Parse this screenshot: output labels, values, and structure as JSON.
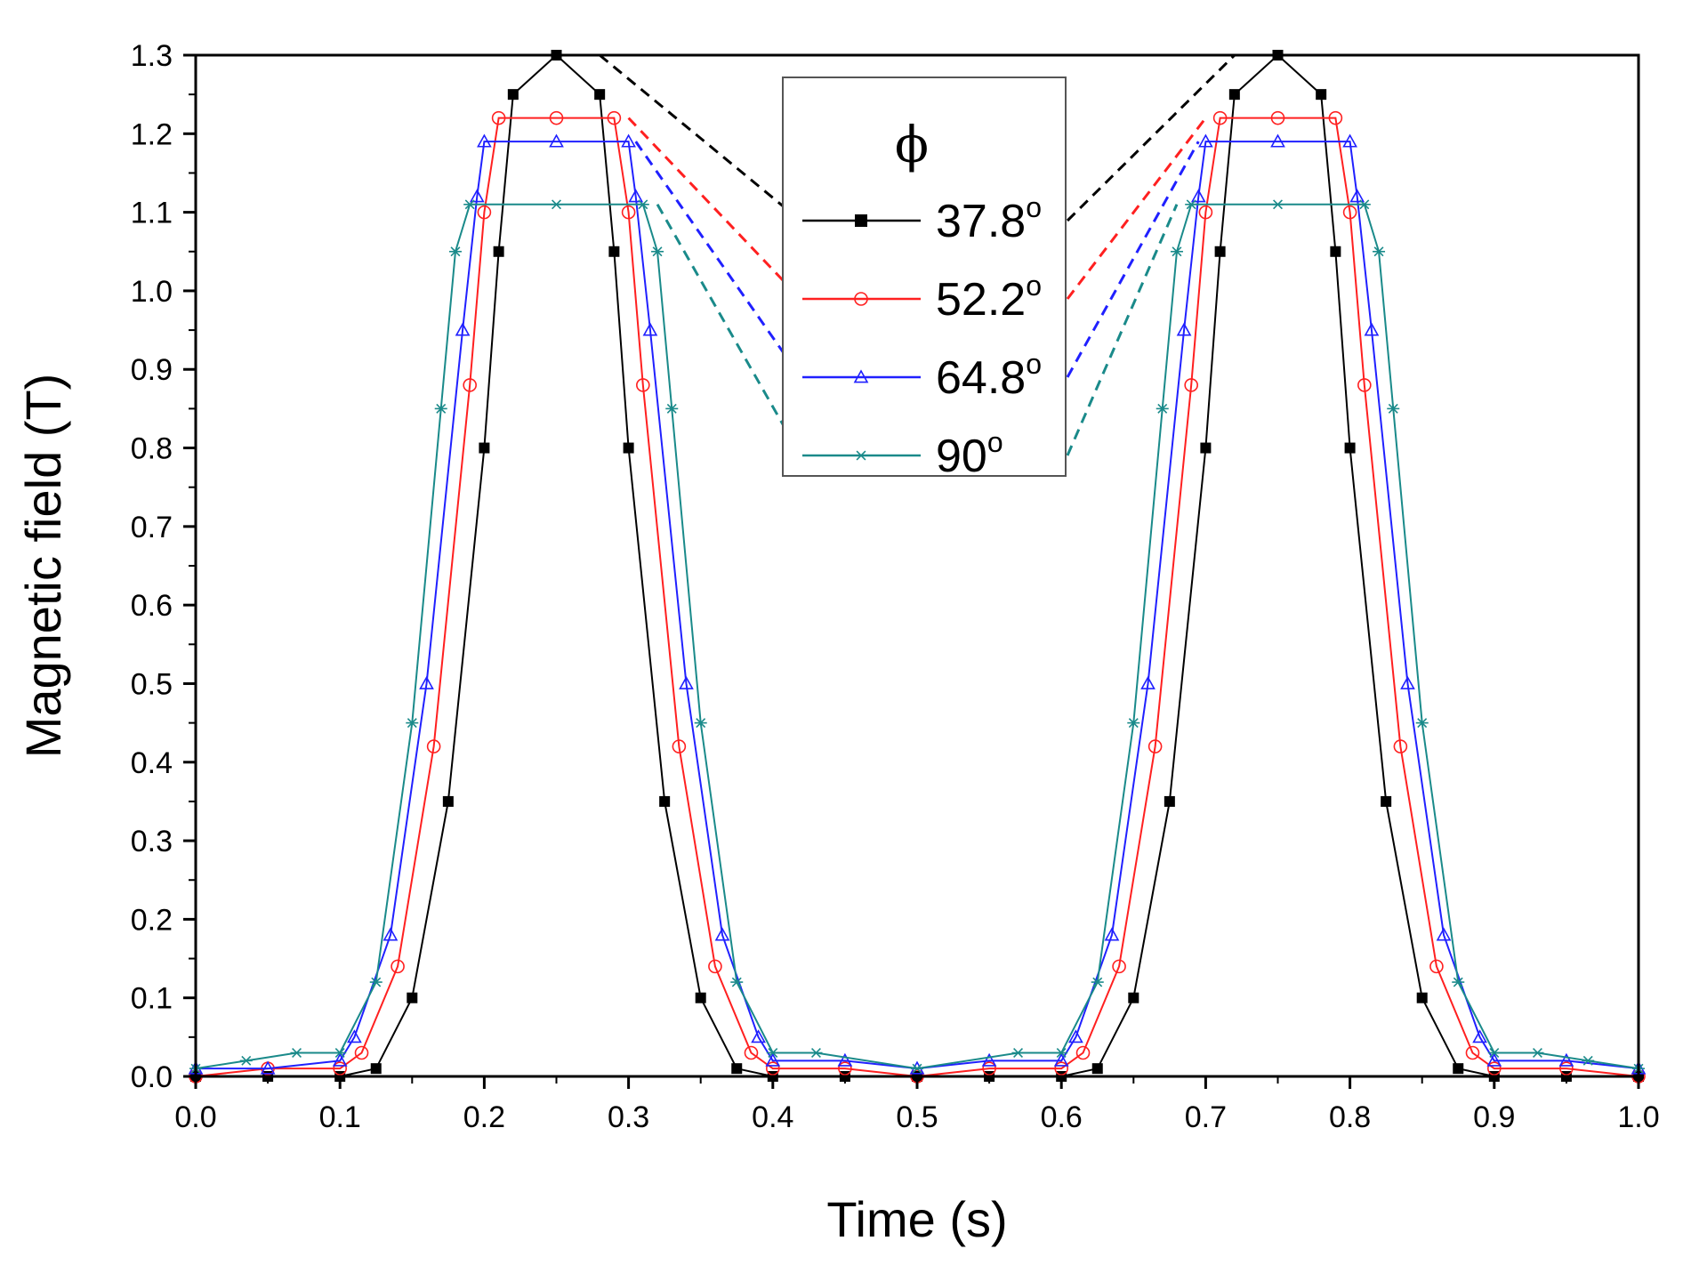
{
  "chart_data": {
    "type": "line",
    "title": "",
    "xlabel": "Time (s)",
    "ylabel": "Magnetic field (T)",
    "xlim": [
      0.0,
      1.0
    ],
    "ylim": [
      0.0,
      1.3
    ],
    "x_ticks": [
      "0.0",
      "0.1",
      "0.2",
      "0.3",
      "0.4",
      "0.5",
      "0.6",
      "0.7",
      "0.8",
      "0.9",
      "1.0"
    ],
    "y_ticks": [
      "0.0",
      "0.1",
      "0.2",
      "0.3",
      "0.4",
      "0.5",
      "0.6",
      "0.7",
      "0.8",
      "0.9",
      "1.0",
      "1.1",
      "1.2",
      "1.3"
    ],
    "legend": {
      "title": "ϕ",
      "placement": "top-center"
    },
    "series": [
      {
        "name": "37.8°",
        "angle": "37.8",
        "unit_sup": "o",
        "color": "#000000",
        "marker": "square",
        "x": [
          0.0,
          0.05,
          0.1,
          0.125,
          0.15,
          0.175,
          0.2,
          0.21,
          0.22,
          0.25,
          0.28,
          0.29,
          0.3,
          0.325,
          0.35,
          0.375,
          0.4,
          0.45,
          0.5,
          0.55,
          0.6,
          0.625,
          0.65,
          0.675,
          0.7,
          0.71,
          0.72,
          0.75,
          0.78,
          0.79,
          0.8,
          0.825,
          0.85,
          0.875,
          0.9,
          0.95,
          1.0
        ],
        "y": [
          0.0,
          0.0,
          0.0,
          0.01,
          0.1,
          0.35,
          0.8,
          1.05,
          1.25,
          1.3,
          1.25,
          1.05,
          0.8,
          0.35,
          0.1,
          0.01,
          0.0,
          0.0,
          0.0,
          0.0,
          0.0,
          0.01,
          0.1,
          0.35,
          0.8,
          1.05,
          1.25,
          1.3,
          1.25,
          1.05,
          0.8,
          0.35,
          0.1,
          0.01,
          0.0,
          0.0,
          0.0
        ]
      },
      {
        "name": "52.2°",
        "angle": "52.2",
        "unit_sup": "o",
        "color": "#ff2020",
        "marker": "circle",
        "x": [
          0.0,
          0.05,
          0.1,
          0.115,
          0.14,
          0.165,
          0.19,
          0.2,
          0.21,
          0.25,
          0.29,
          0.3,
          0.31,
          0.335,
          0.36,
          0.385,
          0.4,
          0.45,
          0.5,
          0.55,
          0.6,
          0.615,
          0.64,
          0.665,
          0.69,
          0.7,
          0.71,
          0.75,
          0.79,
          0.8,
          0.81,
          0.835,
          0.86,
          0.885,
          0.9,
          0.95,
          1.0
        ],
        "y": [
          0.0,
          0.01,
          0.01,
          0.03,
          0.14,
          0.42,
          0.88,
          1.1,
          1.22,
          1.22,
          1.22,
          1.1,
          0.88,
          0.42,
          0.14,
          0.03,
          0.01,
          0.01,
          0.0,
          0.01,
          0.01,
          0.03,
          0.14,
          0.42,
          0.88,
          1.1,
          1.22,
          1.22,
          1.22,
          1.1,
          0.88,
          0.42,
          0.14,
          0.03,
          0.01,
          0.01,
          0.0
        ]
      },
      {
        "name": "64.8°",
        "angle": "64.8",
        "unit_sup": "o",
        "color": "#2020ff",
        "marker": "triangle",
        "x": [
          0.0,
          0.05,
          0.1,
          0.11,
          0.135,
          0.16,
          0.185,
          0.195,
          0.2,
          0.25,
          0.3,
          0.305,
          0.315,
          0.34,
          0.365,
          0.39,
          0.4,
          0.45,
          0.5,
          0.55,
          0.6,
          0.61,
          0.635,
          0.66,
          0.685,
          0.695,
          0.7,
          0.75,
          0.8,
          0.805,
          0.815,
          0.84,
          0.865,
          0.89,
          0.9,
          0.95,
          1.0
        ],
        "y": [
          0.01,
          0.01,
          0.02,
          0.05,
          0.18,
          0.5,
          0.95,
          1.12,
          1.19,
          1.19,
          1.19,
          1.12,
          0.95,
          0.5,
          0.18,
          0.05,
          0.02,
          0.02,
          0.01,
          0.02,
          0.02,
          0.05,
          0.18,
          0.5,
          0.95,
          1.12,
          1.19,
          1.19,
          1.19,
          1.12,
          0.95,
          0.5,
          0.18,
          0.05,
          0.02,
          0.02,
          0.01
        ]
      },
      {
        "name": "90°",
        "angle": "90",
        "unit_sup": "o",
        "color": "#1a8a8a",
        "marker": "asterisk",
        "x": [
          0.0,
          0.035,
          0.07,
          0.1,
          0.125,
          0.15,
          0.17,
          0.18,
          0.19,
          0.25,
          0.31,
          0.32,
          0.33,
          0.35,
          0.375,
          0.4,
          0.43,
          0.5,
          0.57,
          0.6,
          0.625,
          0.65,
          0.67,
          0.68,
          0.69,
          0.75,
          0.81,
          0.82,
          0.83,
          0.85,
          0.875,
          0.9,
          0.93,
          0.965,
          1.0
        ],
        "y": [
          0.01,
          0.02,
          0.03,
          0.03,
          0.12,
          0.45,
          0.85,
          1.05,
          1.11,
          1.11,
          1.11,
          1.05,
          0.85,
          0.45,
          0.12,
          0.03,
          0.03,
          0.01,
          0.03,
          0.03,
          0.12,
          0.45,
          0.85,
          1.05,
          1.11,
          1.11,
          1.11,
          1.05,
          0.85,
          0.45,
          0.12,
          0.03,
          0.03,
          0.02,
          0.01
        ]
      }
    ]
  }
}
